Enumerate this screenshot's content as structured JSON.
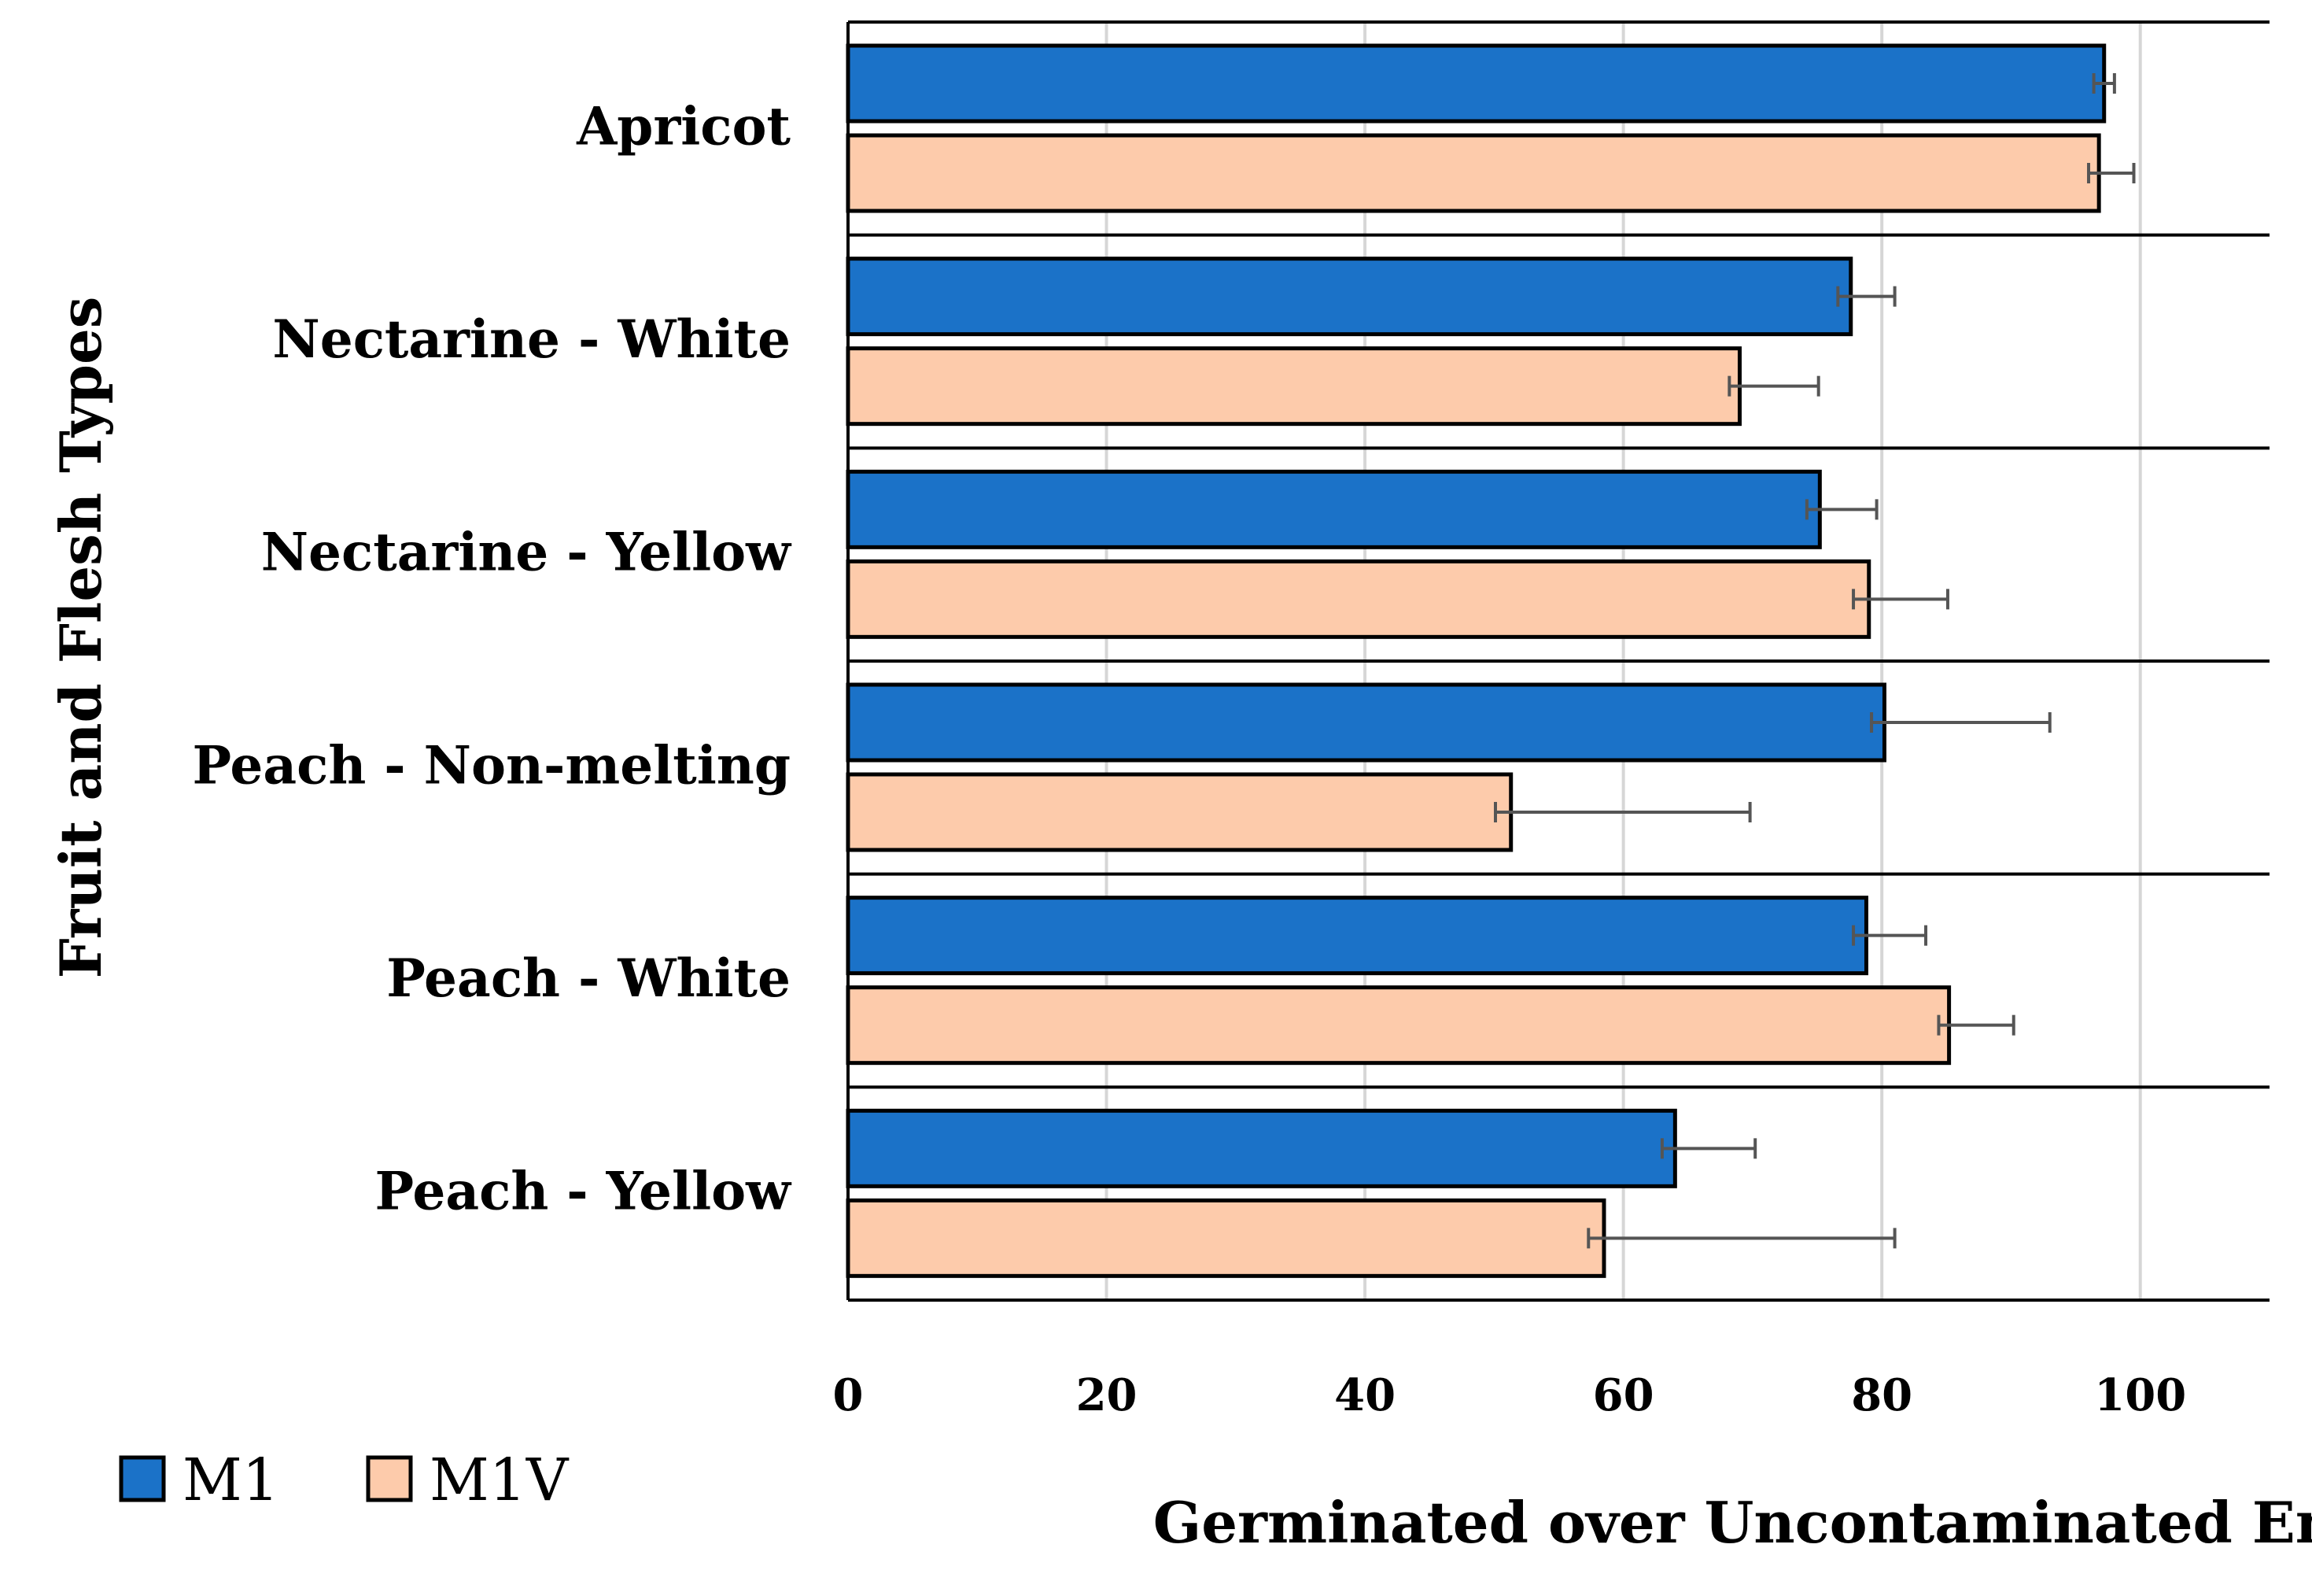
{
  "chart_data": {
    "type": "bar",
    "orientation": "horizontal",
    "title": "",
    "xlabel": "Germinated over Uncontaminated Embryos (%)",
    "ylabel": "Fruit and Flesh Types",
    "xlim": [
      0,
      110
    ],
    "xticks": [
      0,
      20,
      40,
      60,
      80,
      100
    ],
    "grid": true,
    "legend_position": "bottom-left",
    "categories": [
      "Apricot",
      "Nectarine - White",
      "Nectarine - Yellow",
      "Peach - Non-melting",
      "Peach - White",
      "Peach - Yellow"
    ],
    "series": [
      {
        "name": "M1",
        "color": "#1b72c8",
        "values": [
          97.2,
          77.6,
          75.2,
          80.2,
          78.8,
          64.0
        ],
        "error_low": [
          0.8,
          1.0,
          1.0,
          1.0,
          1.0,
          1.0
        ],
        "error_high": [
          0.8,
          3.4,
          4.4,
          12.8,
          4.6,
          6.2
        ]
      },
      {
        "name": "M1V",
        "color": "#fdcbab",
        "values": [
          96.8,
          69.0,
          79.0,
          51.3,
          85.2,
          58.5
        ],
        "error_low": [
          0.8,
          0.8,
          1.2,
          1.2,
          0.8,
          1.2
        ],
        "error_high": [
          2.7,
          6.1,
          6.1,
          18.5,
          5.0,
          22.5
        ]
      }
    ]
  }
}
